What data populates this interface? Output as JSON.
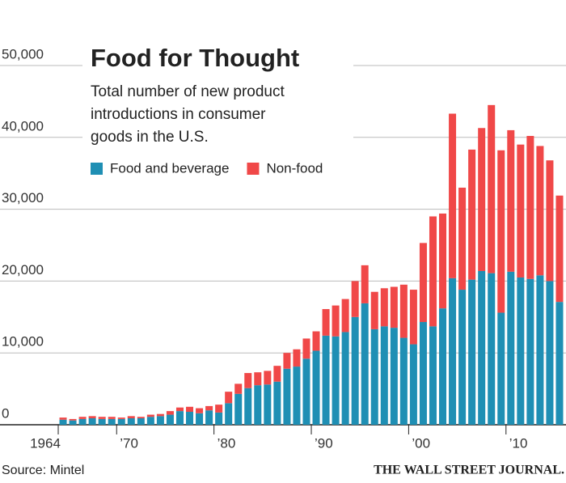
{
  "chart_data": {
    "type": "stacked_bar",
    "title": "Food for Thought",
    "subtitle": [
      "Total number of new product",
      "introductions in consumer",
      "goods in the U.S."
    ],
    "source": "Source: Mintel",
    "credit": "THE WALL STREET JOURNAL.",
    "x": [
      1964,
      1965,
      1966,
      1967,
      1968,
      1969,
      1970,
      1971,
      1972,
      1973,
      1974,
      1975,
      1976,
      1977,
      1978,
      1979,
      1980,
      1981,
      1982,
      1983,
      1984,
      1985,
      1986,
      1987,
      1988,
      1989,
      1990,
      1991,
      1992,
      1993,
      1994,
      1995,
      1996,
      1997,
      1998,
      1999,
      2000,
      2001,
      2002,
      2003,
      2004,
      2005,
      2006,
      2007,
      2008,
      2009,
      2010,
      2011,
      2012,
      2013,
      2014,
      2015
    ],
    "series": [
      {
        "name": "Food and beverage",
        "color": "#1f8fb4",
        "values": [
          700,
          600,
          800,
          900,
          800,
          800,
          800,
          900,
          900,
          1100,
          1200,
          1400,
          1900,
          1800,
          1600,
          2000,
          1700,
          3000,
          4300,
          5100,
          5500,
          5600,
          6000,
          7800,
          8100,
          9200,
          10300,
          12400,
          12300,
          12900,
          15000,
          16900,
          13300,
          13700,
          13500,
          12100,
          11200,
          14300,
          13700,
          16200,
          20400,
          18800,
          20200,
          21400,
          21100,
          15600,
          21300,
          20500,
          20300,
          20800,
          20000,
          17100
        ]
      },
      {
        "name": "Non-food",
        "color": "#f04848",
        "values": [
          300,
          200,
          300,
          300,
          300,
          300,
          200,
          300,
          200,
          300,
          300,
          500,
          500,
          700,
          700,
          600,
          1100,
          1600,
          1400,
          2100,
          1800,
          1900,
          2200,
          2200,
          2400,
          2800,
          2700,
          3700,
          4300,
          4600,
          5000,
          5300,
          5200,
          5300,
          5700,
          7400,
          7600,
          11000,
          15300,
          13200,
          22900,
          14200,
          18100,
          19900,
          23400,
          22600,
          19700,
          18500,
          19900,
          18000,
          16800,
          14800
        ]
      }
    ],
    "xlim": [
      1963.5,
      2015.5
    ],
    "xticks": [
      {
        "value": 1964,
        "label": "1964"
      },
      {
        "value": 1970,
        "label": "’70"
      },
      {
        "value": 1980,
        "label": "’80"
      },
      {
        "value": 1990,
        "label": "’90"
      },
      {
        "value": 2000,
        "label": "’00"
      },
      {
        "value": 2010,
        "label": "’10"
      }
    ],
    "ylim": [
      0,
      50000
    ],
    "yticks": [
      0,
      {
        "value": 10000,
        "label": "10,000"
      },
      {
        "value": 20000,
        "label": "20,000"
      },
      {
        "value": 30000,
        "label": "30,000"
      },
      {
        "value": 40000,
        "label": "40,000"
      },
      {
        "value": 50000,
        "label": "50,000"
      }
    ],
    "grid": true
  }
}
